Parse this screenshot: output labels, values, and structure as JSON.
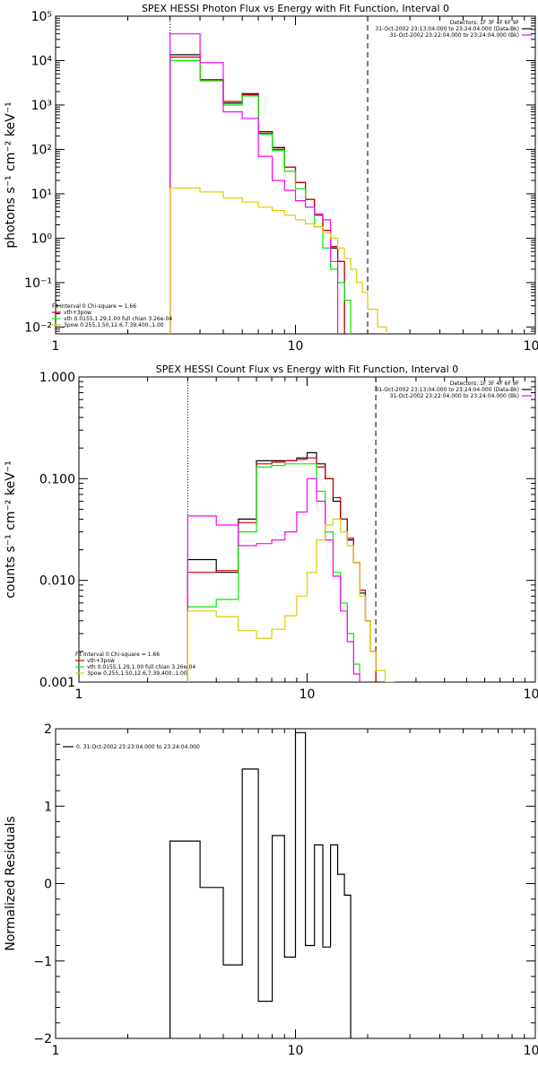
{
  "chart_data": [
    {
      "type": "line",
      "title": "SPEX HESSI Photon Flux vs Energy with Fit Function, Interval 0",
      "ylabel": "photons s⁻¹ cm⁻² keV⁻¹",
      "xlabel": "",
      "xscale": "log",
      "yscale": "log",
      "xlim": [
        1,
        100
      ],
      "ylim": [
        0.007,
        100000
      ],
      "xticks": [
        {
          "v": 1,
          "label": "1"
        },
        {
          "v": 10,
          "label": "10"
        },
        {
          "v": 100,
          "label": "100"
        }
      ],
      "yticks": [
        {
          "v": 0.01,
          "label": "10⁻²"
        },
        {
          "v": 0.1,
          "label": "10⁻¹"
        },
        {
          "v": 1,
          "label": "10⁰"
        },
        {
          "v": 10,
          "label": "10¹"
        },
        {
          "v": 100,
          "label": "10²"
        },
        {
          "v": 1000,
          "label": "10³"
        },
        {
          "v": 10000,
          "label": "10⁴"
        },
        {
          "v": 100000,
          "label": "10⁵"
        }
      ],
      "vlines": [
        {
          "x": 3.0,
          "style": "dotted"
        },
        {
          "x": 20.0,
          "style": "dashed"
        }
      ],
      "header": [
        "Detectors: 1F 3F 4F 6F 9F",
        "31-Oct-2002 23:13:04.000 to 23:24:04.000 (Data-Bk)",
        "31-Oct-2002 23:22:04.000 to 23:24:04.000 (Bk)"
      ],
      "header_colors": [
        "",
        "#000000",
        "#ff00ff"
      ],
      "legend": {
        "title": "Fit Interval 0   Chi-square = 1.66",
        "entries": [
          {
            "label": "vth+3pow",
            "color": "#cc0000"
          },
          {
            "label": "vth 0.0155,1.29,1.00  full chian 3.26e-04",
            "color": "#00ee00"
          },
          {
            "label": "3pow 0.255,1.50,12.6,7.39,400.,1.00",
            "color": "#ddcc00"
          }
        ]
      },
      "edges": [
        3.0,
        4.0,
        5.0,
        6.0,
        7.0,
        8.0,
        9.0,
        10.0,
        11.0,
        12.0,
        13.0,
        14.0,
        15.0,
        16.0,
        17.0,
        18.0,
        19.0,
        20.0,
        22.0,
        24.0
      ],
      "series": [
        {
          "color": "#000000",
          "values": [
            13500,
            3700,
            1100,
            1800,
            250,
            110,
            40,
            18,
            7.5,
            3.3,
            1.5,
            0.6,
            0.3,
            null,
            null,
            null,
            null,
            null,
            null
          ]
        },
        {
          "color": "#cc0000",
          "values": [
            12000,
            3600,
            1200,
            1700,
            230,
            100,
            40,
            18,
            7.5,
            3.3,
            1.5,
            0.65,
            0.3,
            null,
            null,
            null,
            null,
            null,
            null
          ]
        },
        {
          "color": "#00ee00",
          "values": [
            10000,
            3500,
            1000,
            1600,
            220,
            95,
            32,
            13,
            5,
            1.8,
            0.6,
            0.2,
            0.1,
            0.04,
            null,
            null,
            null,
            null,
            null
          ]
        },
        {
          "color": "#ff00ff",
          "values": [
            40000,
            9000,
            700,
            500,
            70,
            20,
            12,
            7,
            5,
            3.5,
            2.6,
            0.3,
            null,
            null,
            null,
            null,
            null,
            null,
            null
          ]
        },
        {
          "color": "#ddcc00",
          "values": [
            13.5,
            11,
            8,
            6.5,
            5,
            4.2,
            3.3,
            2.6,
            2.1,
            1.8,
            1.3,
            1.0,
            0.6,
            0.35,
            0.2,
            0.1,
            0.06,
            0.025,
            0.01
          ]
        }
      ]
    },
    {
      "type": "line",
      "title": "SPEX HESSI Count Flux vs Energy with Fit Function, Interval 0",
      "ylabel": "counts s⁻¹ cm⁻² keV⁻¹",
      "xlabel": "",
      "xscale": "log",
      "yscale": "log",
      "xlim": [
        1,
        100
      ],
      "ylim": [
        0.001,
        1.0
      ],
      "xticks": [
        {
          "v": 1,
          "label": "1"
        },
        {
          "v": 10,
          "label": "10"
        },
        {
          "v": 100,
          "label": "100"
        }
      ],
      "yticks": [
        {
          "v": 0.001,
          "label": "0.001"
        },
        {
          "v": 0.01,
          "label": "0.010"
        },
        {
          "v": 0.1,
          "label": "0.100"
        },
        {
          "v": 1.0,
          "label": "1.000"
        }
      ],
      "vlines": [
        {
          "x": 3.0,
          "style": "dotted"
        },
        {
          "x": 20.0,
          "style": "dashed"
        }
      ],
      "header": [
        "Detectors: 1F 3F 4F 6F 9F",
        "31-Oct-2002 23:13:04.000 to 23:24:04.000 (Data-Bk)",
        "31-Oct-2002 23:22:04.000 to 23:24:04.000 (Bk)"
      ],
      "header_colors": [
        "",
        "#000000",
        "#ff00ff"
      ],
      "legend": {
        "title": "Fit Interval 0   Chi-square = 1.66",
        "entries": [
          {
            "label": "vth+3pow",
            "color": "#cc0000"
          },
          {
            "label": "vth 0.0155,1.29,1.00  full chian 3.26e-04",
            "color": "#00ee00"
          },
          {
            "label": "3pow 0.255,1.50,12.6,7.39,400.,1.00",
            "color": "#ddcc00"
          }
        ]
      },
      "edges": [
        3.0,
        4.0,
        5.0,
        6.0,
        7.0,
        8.0,
        9.0,
        10.0,
        11.0,
        12.0,
        13.0,
        14.0,
        15.0,
        16.0,
        17.0,
        18.0,
        19.0,
        20.0,
        22.0,
        24.0,
        26.0
      ],
      "series": [
        {
          "color": "#000000",
          "values": [
            0.016,
            0.012,
            0.04,
            0.15,
            0.15,
            0.15,
            0.16,
            0.18,
            0.14,
            0.1,
            0.06,
            0.04,
            0.025,
            0.015,
            0.0075,
            0.004,
            0.002,
            null,
            null,
            null
          ]
        },
        {
          "color": "#cc0000",
          "values": [
            0.012,
            0.0125,
            0.037,
            0.14,
            0.145,
            0.15,
            0.155,
            0.16,
            0.13,
            0.1,
            0.065,
            0.04,
            0.026,
            0.015,
            0.008,
            0.004,
            0.002,
            null,
            null,
            null
          ]
        },
        {
          "color": "#00ee00",
          "values": [
            0.0055,
            0.0065,
            0.03,
            0.13,
            0.135,
            0.14,
            0.14,
            0.14,
            0.075,
            0.03,
            0.012,
            0.006,
            0.003,
            0.0015,
            null,
            null,
            null,
            null,
            null,
            null
          ]
        },
        {
          "color": "#ff00ff",
          "values": [
            0.043,
            0.035,
            0.022,
            0.023,
            0.025,
            0.03,
            0.047,
            0.1,
            0.06,
            0.025,
            0.011,
            0.005,
            0.0025,
            0.0012,
            null,
            null,
            null,
            null,
            null,
            null
          ]
        },
        {
          "color": "#ddcc00",
          "values": [
            0.005,
            0.0044,
            0.0032,
            0.0027,
            0.0033,
            0.0045,
            0.007,
            0.012,
            0.025,
            0.035,
            0.04,
            0.03,
            0.022,
            0.015,
            0.007,
            0.004,
            0.002,
            0.0013,
            0.001,
            0.0008
          ]
        }
      ]
    },
    {
      "type": "line",
      "title": "",
      "ylabel": "Normalized Residuals",
      "xlabel": "",
      "xscale": "log",
      "yscale": "linear",
      "xlim": [
        1,
        100
      ],
      "ylim": [
        -2,
        2
      ],
      "xticks": [
        {
          "v": 1,
          "label": "1"
        },
        {
          "v": 10,
          "label": "10"
        },
        {
          "v": 100,
          "label": "100"
        }
      ],
      "yticks": [
        {
          "v": -2,
          "label": "−2"
        },
        {
          "v": -1,
          "label": "−1"
        },
        {
          "v": 0,
          "label": "0"
        },
        {
          "v": 1,
          "label": "1"
        },
        {
          "v": 2,
          "label": "2"
        }
      ],
      "legend": {
        "title": "",
        "entries": [
          {
            "label": "0. 31-Oct-2002 23:23:04.000 to 23:24:04.000",
            "color": "#000000"
          }
        ]
      },
      "edges": [
        3.0,
        4.0,
        5.0,
        6.0,
        7.0,
        8.0,
        9.0,
        10.0,
        11.0,
        12.0,
        13.0,
        14.0,
        15.0,
        16.0,
        17.0,
        18.0,
        19.0,
        20.0
      ],
      "series": [
        {
          "color": "#000000",
          "values": [
            0.55,
            -0.05,
            -1.05,
            1.48,
            -1.52,
            0.62,
            -0.95,
            1.95,
            -0.8,
            0.5,
            -0.82,
            0.5,
            0.12,
            -0.15,
            null,
            null,
            null
          ]
        }
      ]
    }
  ]
}
